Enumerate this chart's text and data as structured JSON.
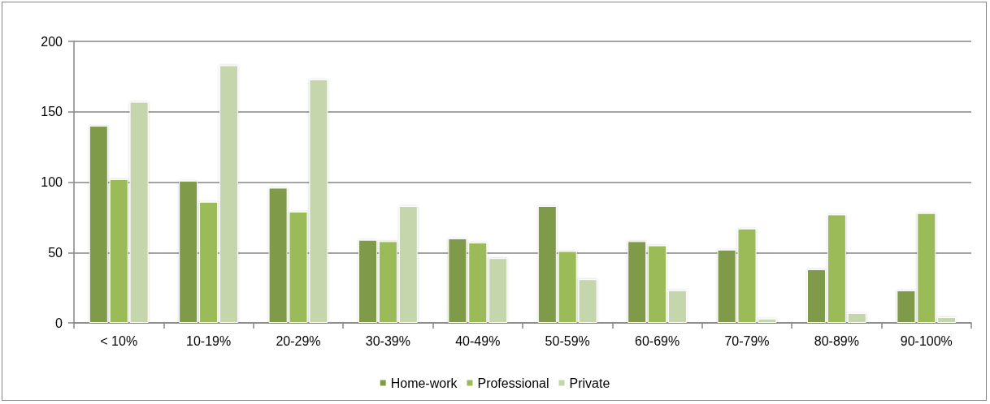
{
  "chart_data": {
    "type": "bar",
    "categories": [
      "< 10%",
      "10-19%",
      "20-29%",
      "30-39%",
      "40-49%",
      "50-59%",
      "60-69%",
      "70-79%",
      "80-89%",
      "90-100%"
    ],
    "series": [
      {
        "name": "Home-work",
        "color": "#7f9a48",
        "values": [
          140,
          101,
          96,
          59,
          60,
          83,
          58,
          52,
          38,
          23
        ]
      },
      {
        "name": "Professional",
        "color": "#9bbb59",
        "values": [
          102,
          86,
          79,
          58,
          57,
          51,
          55,
          67,
          77,
          78
        ]
      },
      {
        "name": "Private",
        "color": "#c6d6ac",
        "values": [
          157,
          183,
          173,
          83,
          46,
          31,
          23,
          3,
          7,
          4
        ]
      }
    ],
    "ylim": [
      0,
      200
    ],
    "yticks": [
      0,
      50,
      100,
      150,
      200
    ],
    "grid": "y",
    "legend": "bottom"
  }
}
